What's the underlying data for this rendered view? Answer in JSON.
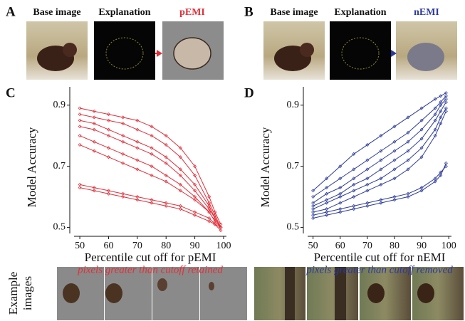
{
  "panel_letters": [
    "A",
    "B",
    "C",
    "D"
  ],
  "top_labels": {
    "A": [
      "Base image",
      "Explanation",
      "pEMI"
    ],
    "B": [
      "Base image",
      "Explanation",
      "nEMI"
    ]
  },
  "example_label": [
    "Example",
    "images"
  ],
  "chart_data": [
    {
      "type": "line",
      "xlabel": "Percentile cut off for pEMI",
      "subtitle": "pixels greater than cutoff retained",
      "ylabel": "Model Accuracy",
      "x": [
        50,
        55,
        60,
        65,
        70,
        75,
        80,
        85,
        90,
        95,
        97,
        99
      ],
      "xlim": [
        48,
        101
      ],
      "xticks": [
        50,
        60,
        70,
        80,
        90,
        100
      ],
      "ylim": [
        0.48,
        0.96
      ],
      "yticks": [
        0.5,
        0.7,
        0.9
      ],
      "series": [
        {
          "color": "#e0303a",
          "values": [
            0.89,
            0.88,
            0.87,
            0.86,
            0.85,
            0.83,
            0.8,
            0.76,
            0.7,
            0.6,
            0.55,
            0.51
          ]
        },
        {
          "color": "#e0303a",
          "values": [
            0.87,
            0.86,
            0.85,
            0.84,
            0.82,
            0.8,
            0.77,
            0.73,
            0.67,
            0.58,
            0.54,
            0.5
          ]
        },
        {
          "color": "#e0303a",
          "values": [
            0.85,
            0.84,
            0.82,
            0.8,
            0.78,
            0.76,
            0.73,
            0.69,
            0.64,
            0.57,
            0.53,
            0.5
          ]
        },
        {
          "color": "#e0303a",
          "values": [
            0.83,
            0.82,
            0.8,
            0.78,
            0.76,
            0.74,
            0.71,
            0.67,
            0.62,
            0.56,
            0.53,
            0.5
          ]
        },
        {
          "color": "#e0303a",
          "values": [
            0.8,
            0.78,
            0.76,
            0.74,
            0.72,
            0.7,
            0.67,
            0.64,
            0.6,
            0.55,
            0.52,
            0.5
          ]
        },
        {
          "color": "#e0303a",
          "values": [
            0.77,
            0.75,
            0.73,
            0.71,
            0.69,
            0.67,
            0.65,
            0.62,
            0.59,
            0.55,
            0.52,
            0.5
          ]
        },
        {
          "color": "#e0303a",
          "values": [
            0.64,
            0.63,
            0.62,
            0.61,
            0.6,
            0.59,
            0.58,
            0.57,
            0.55,
            0.53,
            0.51,
            0.5
          ]
        },
        {
          "color": "#e0303a",
          "values": [
            0.63,
            0.62,
            0.61,
            0.6,
            0.59,
            0.58,
            0.57,
            0.56,
            0.54,
            0.52,
            0.51,
            0.49
          ]
        }
      ]
    },
    {
      "type": "line",
      "xlabel": "Percentile cut off for nEMI",
      "subtitle": "pixels greater than cutoff removed",
      "ylabel": "Model Accuracy",
      "x": [
        50,
        55,
        60,
        65,
        70,
        75,
        80,
        85,
        90,
        95,
        97,
        99
      ],
      "xlim": [
        48,
        101
      ],
      "xticks": [
        50,
        60,
        70,
        80,
        90,
        100
      ],
      "ylim": [
        0.48,
        0.96
      ],
      "yticks": [
        0.5,
        0.7,
        0.9
      ],
      "series": [
        {
          "color": "#2b3a9c",
          "values": [
            0.62,
            0.66,
            0.7,
            0.74,
            0.77,
            0.8,
            0.83,
            0.86,
            0.89,
            0.92,
            0.93,
            0.94
          ]
        },
        {
          "color": "#2b3a9c",
          "values": [
            0.6,
            0.63,
            0.66,
            0.69,
            0.72,
            0.75,
            0.78,
            0.81,
            0.85,
            0.89,
            0.91,
            0.93
          ]
        },
        {
          "color": "#2b3a9c",
          "values": [
            0.58,
            0.61,
            0.63,
            0.66,
            0.69,
            0.72,
            0.75,
            0.78,
            0.82,
            0.87,
            0.9,
            0.92
          ]
        },
        {
          "color": "#2b3a9c",
          "values": [
            0.57,
            0.59,
            0.61,
            0.64,
            0.66,
            0.69,
            0.72,
            0.75,
            0.79,
            0.85,
            0.88,
            0.91
          ]
        },
        {
          "color": "#2b3a9c",
          "values": [
            0.56,
            0.58,
            0.6,
            0.62,
            0.64,
            0.66,
            0.69,
            0.72,
            0.76,
            0.82,
            0.86,
            0.89
          ]
        },
        {
          "color": "#2b3a9c",
          "values": [
            0.55,
            0.56,
            0.58,
            0.6,
            0.62,
            0.64,
            0.66,
            0.69,
            0.73,
            0.8,
            0.84,
            0.88
          ]
        },
        {
          "color": "#2b3a9c",
          "values": [
            0.54,
            0.55,
            0.56,
            0.57,
            0.58,
            0.59,
            0.6,
            0.61,
            0.63,
            0.66,
            0.68,
            0.7
          ]
        },
        {
          "color": "#2b3a9c",
          "values": [
            0.53,
            0.54,
            0.55,
            0.56,
            0.57,
            0.58,
            0.59,
            0.6,
            0.62,
            0.65,
            0.67,
            0.71
          ]
        }
      ]
    }
  ]
}
